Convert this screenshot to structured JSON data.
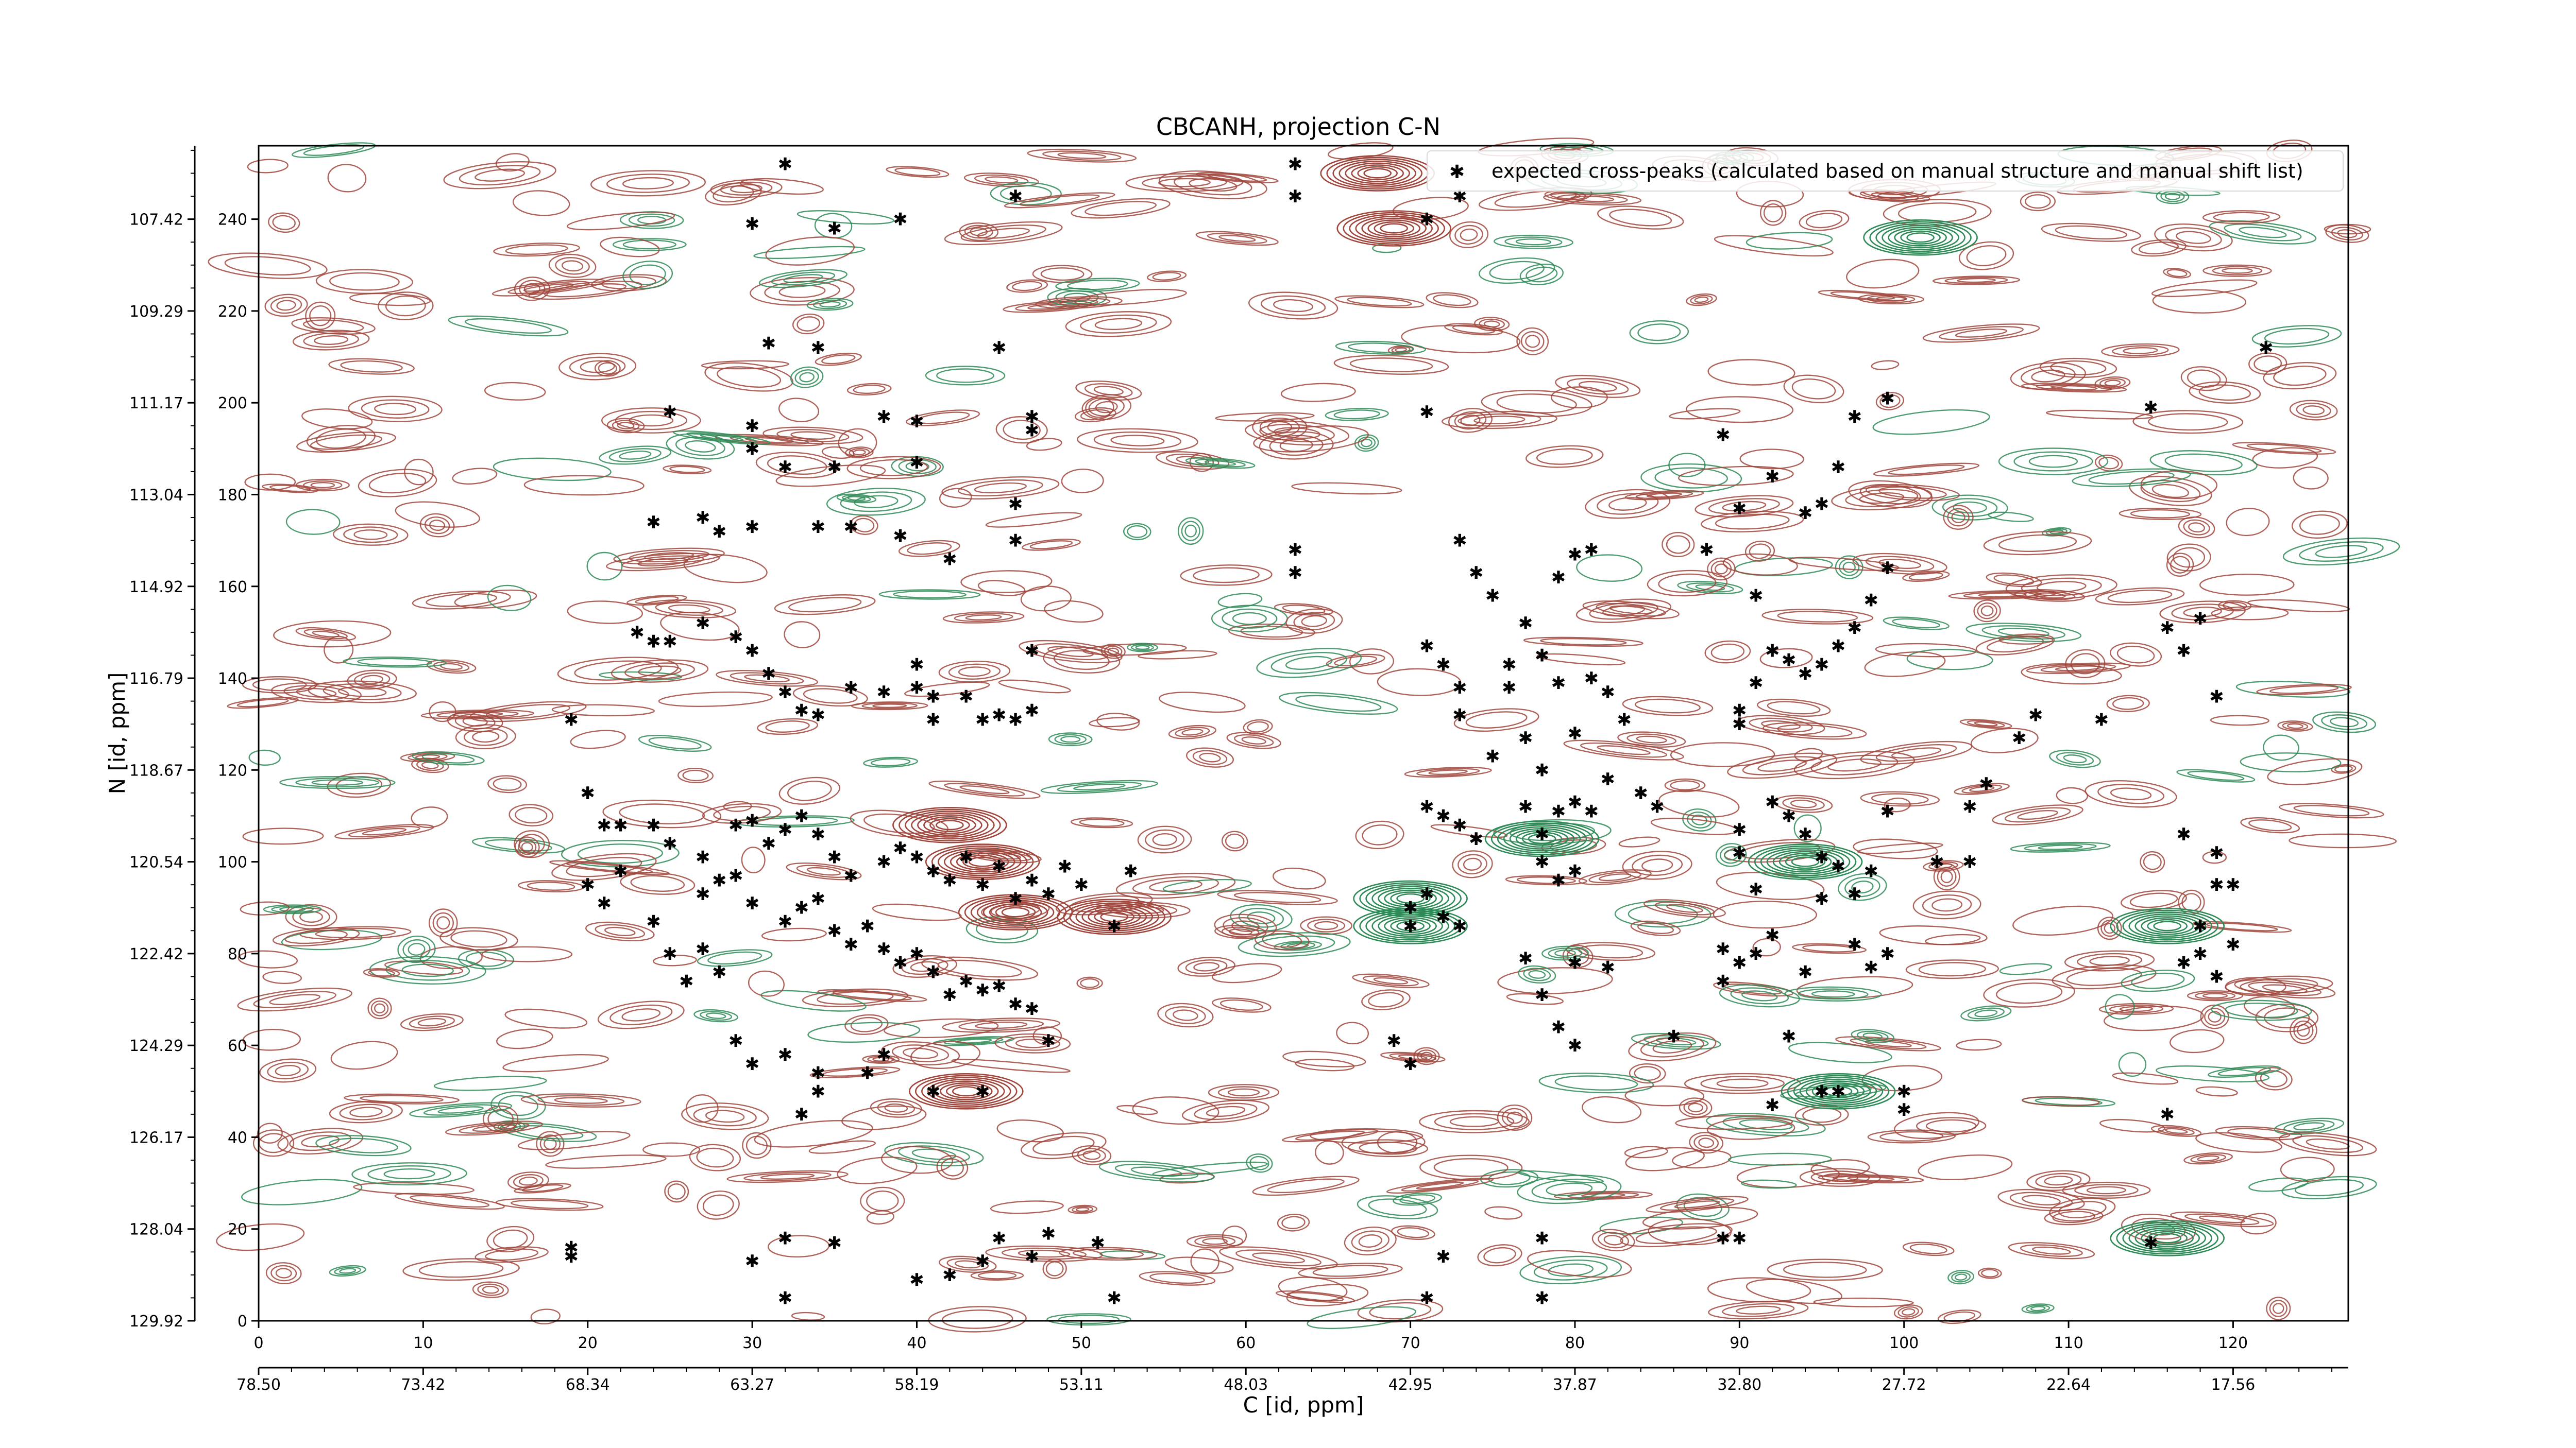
{
  "chart_data": {
    "type": "scatter",
    "title": "CBCANH, projection C-N",
    "xlabel": "C [id, ppm]",
    "ylabel": "N [id, ppm]",
    "xlim": [
      0,
      127
    ],
    "ylim": [
      0,
      256
    ],
    "x_index_ticks": [
      "0",
      "10",
      "20",
      "30",
      "40",
      "50",
      "60",
      "70",
      "80",
      "90",
      "100",
      "110",
      "120"
    ],
    "x_ppm_ticks": [
      "78.50",
      "73.42",
      "68.34",
      "63.27",
      "58.19",
      "53.11",
      "48.03",
      "42.95",
      "37.87",
      "32.80",
      "27.72",
      "22.64",
      "17.56"
    ],
    "y_index_ticks": [
      "0",
      "20",
      "40",
      "60",
      "80",
      "100",
      "120",
      "140",
      "160",
      "180",
      "200",
      "220",
      "240"
    ],
    "y_ppm_ticks": [
      "129.92",
      "128.04",
      "126.17",
      "124.29",
      "122.42",
      "120.54",
      "118.67",
      "116.79",
      "114.92",
      "113.04",
      "111.17",
      "109.29",
      "107.42"
    ],
    "legend": {
      "position": "top-right",
      "entries": [
        "expected cross-peaks (calculated based on manual structure and manual shift list)"
      ]
    },
    "colors": {
      "peaks": "#0000ee",
      "contour_positive": "#a0463c",
      "contour_negative": "#2e8b57"
    },
    "series": [
      {
        "name": "expected cross-peaks (calculated based on manual structure and manual shift list)",
        "points": [
          [
            32,
            252
          ],
          [
            63,
            252
          ],
          [
            30,
            239
          ],
          [
            35,
            238
          ],
          [
            39,
            240
          ],
          [
            46,
            245
          ],
          [
            63,
            245
          ],
          [
            71,
            240
          ],
          [
            73,
            245
          ],
          [
            31,
            213
          ],
          [
            34,
            212
          ],
          [
            45,
            212
          ],
          [
            122,
            212
          ],
          [
            25,
            198
          ],
          [
            30,
            195
          ],
          [
            38,
            197
          ],
          [
            40,
            196
          ],
          [
            47,
            197
          ],
          [
            30,
            190
          ],
          [
            32,
            186
          ],
          [
            35,
            186
          ],
          [
            40,
            187
          ],
          [
            47,
            194
          ],
          [
            24,
            174
          ],
          [
            27,
            175
          ],
          [
            28,
            172
          ],
          [
            30,
            173
          ],
          [
            34,
            173
          ],
          [
            36,
            173
          ],
          [
            39,
            171
          ],
          [
            42,
            166
          ],
          [
            46,
            170
          ],
          [
            46,
            178
          ],
          [
            23,
            150
          ],
          [
            24,
            148
          ],
          [
            25,
            148
          ],
          [
            27,
            152
          ],
          [
            29,
            149
          ],
          [
            30,
            146
          ],
          [
            31,
            141
          ],
          [
            32,
            137
          ],
          [
            33,
            133
          ],
          [
            34,
            132
          ],
          [
            36,
            138
          ],
          [
            38,
            137
          ],
          [
            40,
            143
          ],
          [
            40,
            138
          ],
          [
            41,
            136
          ],
          [
            41,
            131
          ],
          [
            43,
            136
          ],
          [
            44,
            131
          ],
          [
            45,
            132
          ],
          [
            46,
            131
          ],
          [
            47,
            133
          ],
          [
            47,
            146
          ],
          [
            19,
            131
          ],
          [
            20,
            115
          ],
          [
            21,
            108
          ],
          [
            22,
            108
          ],
          [
            24,
            108
          ],
          [
            25,
            104
          ],
          [
            27,
            101
          ],
          [
            28,
            96
          ],
          [
            29,
            108
          ],
          [
            30,
            109
          ],
          [
            31,
            104
          ],
          [
            32,
            107
          ],
          [
            33,
            110
          ],
          [
            34,
            106
          ],
          [
            35,
            101
          ],
          [
            36,
            97
          ],
          [
            38,
            100
          ],
          [
            39,
            103
          ],
          [
            40,
            101
          ],
          [
            41,
            98
          ],
          [
            42,
            96
          ],
          [
            43,
            101
          ],
          [
            44,
            95
          ],
          [
            45,
            99
          ],
          [
            46,
            92
          ],
          [
            47,
            96
          ],
          [
            48,
            93
          ],
          [
            49,
            99
          ],
          [
            50,
            95
          ],
          [
            52,
            86
          ],
          [
            53,
            98
          ],
          [
            27,
            93
          ],
          [
            29,
            97
          ],
          [
            30,
            91
          ],
          [
            32,
            87
          ],
          [
            33,
            90
          ],
          [
            34,
            92
          ],
          [
            35,
            85
          ],
          [
            36,
            82
          ],
          [
            37,
            86
          ],
          [
            38,
            81
          ],
          [
            39,
            78
          ],
          [
            40,
            80
          ],
          [
            41,
            76
          ],
          [
            42,
            71
          ],
          [
            43,
            74
          ],
          [
            44,
            72
          ],
          [
            45,
            73
          ],
          [
            46,
            69
          ],
          [
            47,
            68
          ],
          [
            24,
            87
          ],
          [
            25,
            80
          ],
          [
            26,
            74
          ],
          [
            27,
            81
          ],
          [
            28,
            76
          ],
          [
            29,
            61
          ],
          [
            30,
            56
          ],
          [
            32,
            58
          ],
          [
            34,
            54
          ],
          [
            37,
            54
          ],
          [
            38,
            58
          ],
          [
            41,
            50
          ],
          [
            44,
            50
          ],
          [
            48,
            61
          ],
          [
            20,
            95
          ],
          [
            21,
            91
          ],
          [
            22,
            98
          ],
          [
            63,
            163
          ],
          [
            63,
            168
          ],
          [
            71,
            198
          ],
          [
            73,
            170
          ],
          [
            74,
            163
          ],
          [
            75,
            158
          ],
          [
            71,
            147
          ],
          [
            72,
            143
          ],
          [
            73,
            138
          ],
          [
            73,
            132
          ],
          [
            71,
            112
          ],
          [
            72,
            110
          ],
          [
            73,
            108
          ],
          [
            74,
            105
          ],
          [
            72,
            88
          ],
          [
            70,
            86
          ],
          [
            73,
            86
          ],
          [
            71,
            93
          ],
          [
            70,
            90
          ],
          [
            75,
            123
          ],
          [
            77,
            127
          ],
          [
            78,
            120
          ],
          [
            77,
            112
          ],
          [
            79,
            111
          ],
          [
            80,
            113
          ],
          [
            78,
            106
          ],
          [
            81,
            111
          ],
          [
            78,
            100
          ],
          [
            80,
            98
          ],
          [
            79,
            96
          ],
          [
            82,
            137
          ],
          [
            83,
            131
          ],
          [
            80,
            128
          ],
          [
            82,
            118
          ],
          [
            84,
            115
          ],
          [
            85,
            112
          ],
          [
            79,
            139
          ],
          [
            81,
            140
          ],
          [
            76,
            138
          ],
          [
            76,
            143
          ],
          [
            78,
            145
          ],
          [
            77,
            152
          ],
          [
            79,
            162
          ],
          [
            80,
            167
          ],
          [
            81,
            168
          ],
          [
            80,
            60
          ],
          [
            79,
            64
          ],
          [
            78,
            71
          ],
          [
            69,
            61
          ],
          [
            70,
            56
          ],
          [
            77,
            79
          ],
          [
            80,
            78
          ],
          [
            82,
            77
          ],
          [
            86,
            62
          ],
          [
            89,
            81
          ],
          [
            90,
            102
          ],
          [
            91,
            94
          ],
          [
            90,
            107
          ],
          [
            92,
            113
          ],
          [
            93,
            110
          ],
          [
            94,
            106
          ],
          [
            95,
            101
          ],
          [
            96,
            99
          ],
          [
            95,
            92
          ],
          [
            97,
            93
          ],
          [
            98,
            98
          ],
          [
            99,
            111
          ],
          [
            90,
            133
          ],
          [
            91,
            139
          ],
          [
            92,
            146
          ],
          [
            93,
            144
          ],
          [
            94,
            141
          ],
          [
            95,
            143
          ],
          [
            96,
            147
          ],
          [
            97,
            151
          ],
          [
            98,
            157
          ],
          [
            99,
            164
          ],
          [
            90,
            177
          ],
          [
            92,
            184
          ],
          [
            94,
            176
          ],
          [
            95,
            178
          ],
          [
            96,
            186
          ],
          [
            97,
            197
          ],
          [
            99,
            201
          ],
          [
            89,
            193
          ],
          [
            91,
            158
          ],
          [
            88,
            168
          ],
          [
            90,
            130
          ],
          [
            102,
            100
          ],
          [
            104,
            100
          ],
          [
            104,
            112
          ],
          [
            105,
            117
          ],
          [
            107,
            127
          ],
          [
            108,
            132
          ],
          [
            89,
            74
          ],
          [
            91,
            80
          ],
          [
            90,
            78
          ],
          [
            93,
            62
          ],
          [
            95,
            50
          ],
          [
            97,
            82
          ],
          [
            98,
            77
          ],
          [
            99,
            80
          ],
          [
            100,
            46
          ],
          [
            92,
            84
          ],
          [
            94,
            76
          ],
          [
            117,
            106
          ],
          [
            119,
            102
          ],
          [
            119,
            95
          ],
          [
            120,
            95
          ],
          [
            118,
            86
          ],
          [
            118,
            80
          ],
          [
            117,
            78
          ],
          [
            120,
            82
          ],
          [
            119,
            75
          ],
          [
            116,
            151
          ],
          [
            117,
            146
          ],
          [
            118,
            153
          ],
          [
            119,
            136
          ],
          [
            112,
            131
          ],
          [
            115,
            199
          ],
          [
            51,
            17
          ],
          [
            47,
            14
          ],
          [
            48,
            19
          ],
          [
            45,
            18
          ],
          [
            44,
            13
          ],
          [
            42,
            10
          ],
          [
            40,
            9
          ],
          [
            52,
            5
          ],
          [
            35,
            17
          ],
          [
            32,
            18
          ],
          [
            30,
            13
          ],
          [
            32,
            5
          ],
          [
            19,
            16
          ],
          [
            19,
            14
          ],
          [
            71,
            5
          ],
          [
            72,
            14
          ],
          [
            78,
            18
          ],
          [
            78,
            5
          ],
          [
            89,
            18
          ],
          [
            90,
            18
          ],
          [
            115,
            17
          ],
          [
            116,
            45
          ],
          [
            92,
            47
          ],
          [
            100,
            50
          ],
          [
            96,
            50
          ],
          [
            33,
            45
          ],
          [
            34,
            50
          ]
        ]
      }
    ]
  }
}
